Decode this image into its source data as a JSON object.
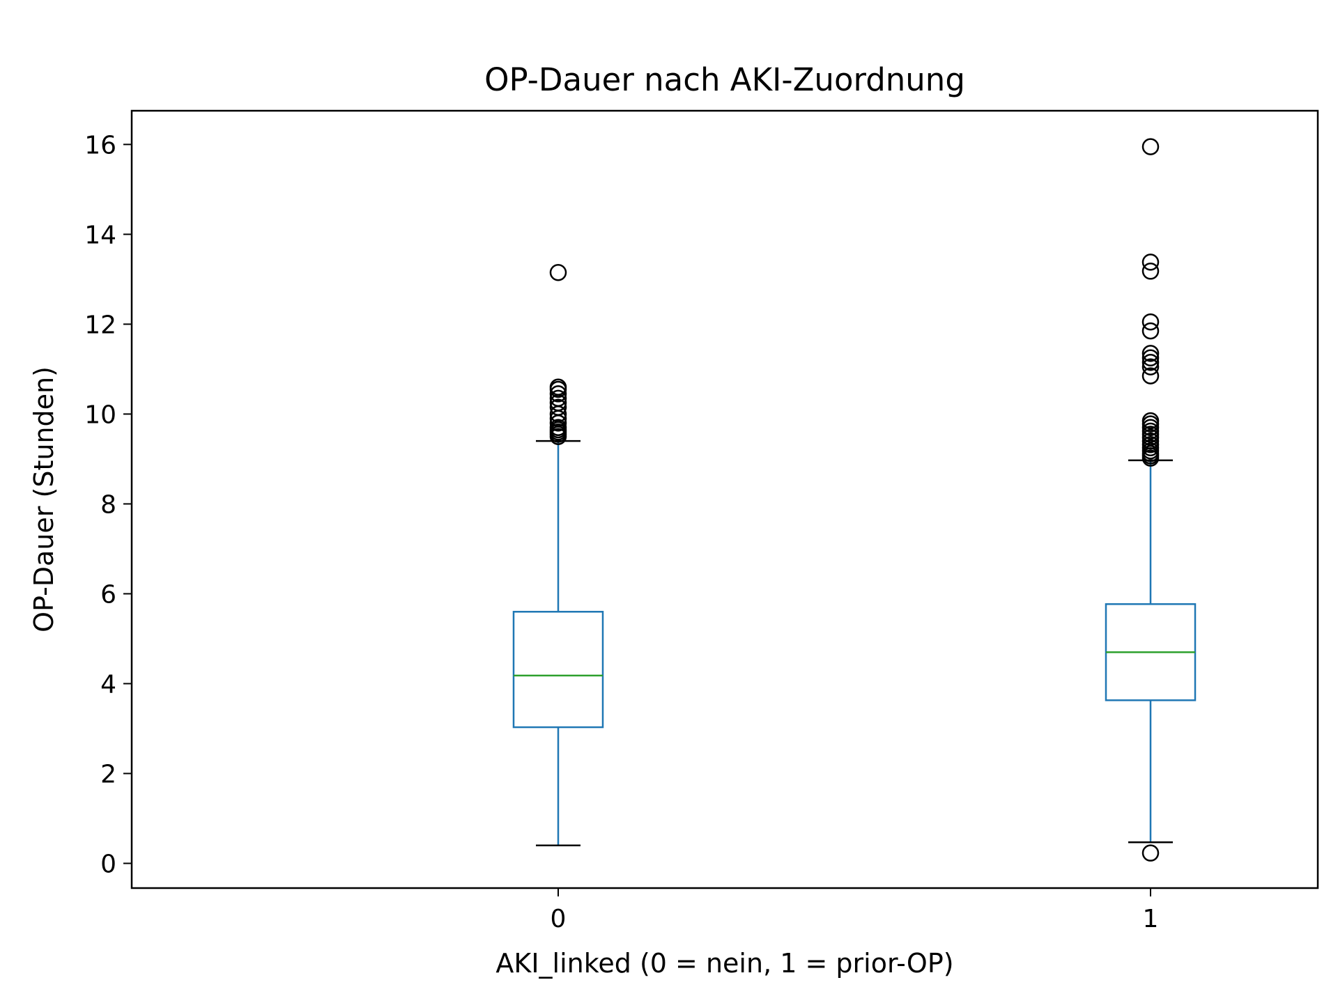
{
  "chart_data": {
    "type": "boxplot",
    "title": "OP-Dauer nach AKI-Zuordnung",
    "xlabel": "AKI_linked (0 = nein, 1 = prior-OP)",
    "ylabel": "OP-Dauer (Stunden)",
    "ylim": [
      -0.55,
      16.75
    ],
    "yticks": [
      0,
      2,
      4,
      6,
      8,
      10,
      12,
      14,
      16
    ],
    "grid": false,
    "categories": [
      "0",
      "1"
    ],
    "boxes": [
      {
        "category": "0",
        "whisker_low": 0.4,
        "q1": 3.03,
        "median": 4.18,
        "q3": 5.6,
        "whisker_high": 9.4,
        "outliers": [
          9.5,
          9.55,
          9.6,
          9.65,
          9.7,
          9.8,
          9.9,
          10.0,
          10.15,
          10.25,
          10.35,
          10.45,
          10.55,
          10.6,
          13.15
        ]
      },
      {
        "category": "1",
        "whisker_low": 0.47,
        "q1": 3.63,
        "median": 4.7,
        "q3": 5.77,
        "whisker_high": 8.97,
        "outliers": [
          0.23,
          9.02,
          9.07,
          9.12,
          9.18,
          9.25,
          9.32,
          9.4,
          9.48,
          9.55,
          9.62,
          9.7,
          9.78,
          9.85,
          10.85,
          11.05,
          11.15,
          11.25,
          11.35,
          11.85,
          12.05,
          13.18,
          13.38,
          15.95
        ]
      }
    ],
    "colors": {
      "box": "#1f77b4",
      "median": "#2ca02c",
      "caps": "#000000",
      "outlier": "#000000"
    }
  }
}
